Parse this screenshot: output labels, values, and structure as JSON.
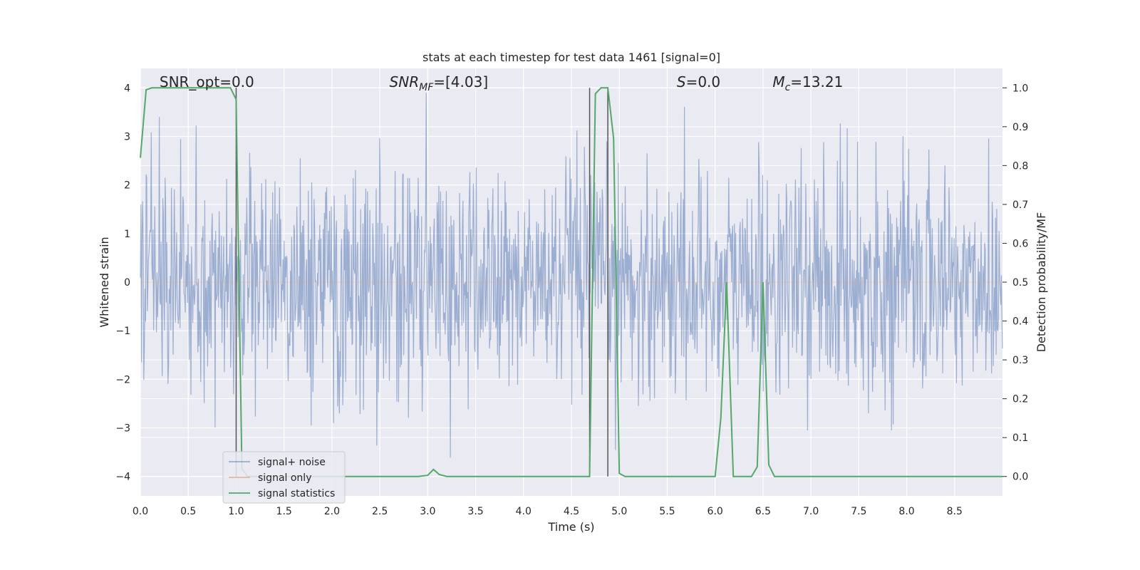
{
  "chart_data": {
    "type": "line",
    "title": "stats at each timestep for test data 1461 [signal=0]",
    "xlabel": "Time (s)",
    "ylabel": "Whitened strain",
    "y2label": "Detection probability/MF",
    "xlim": [
      0.0,
      9.0
    ],
    "ylim": [
      -4.4,
      4.4
    ],
    "y2lim": [
      -0.05,
      1.05
    ],
    "x_ticks": [
      "0.0",
      "0.5",
      "1.0",
      "1.5",
      "2.0",
      "2.5",
      "3.0",
      "3.5",
      "4.0",
      "4.5",
      "5.0",
      "5.5",
      "6.0",
      "6.5",
      "7.0",
      "7.5",
      "8.0",
      "8.5"
    ],
    "y_ticks": [
      "4",
      "3",
      "2",
      "1",
      "0",
      "−1",
      "−2",
      "−3",
      "−4"
    ],
    "y2_ticks": [
      "1.0",
      "0.9",
      "0.8",
      "0.7",
      "0.6",
      "0.5",
      "0.4",
      "0.3",
      "0.2",
      "0.1",
      "0.0"
    ],
    "grid": true,
    "legend_position": "bottom-left",
    "annotations": [
      {
        "id": "snr-opt",
        "text": "SNR_opt=0.0",
        "x": 0.2
      },
      {
        "id": "snr-mf",
        "text": "SNR_MF=[4.03]",
        "x": 2.6
      },
      {
        "id": "s-value",
        "text": "S=0.0",
        "x": 5.6
      },
      {
        "id": "mc-value",
        "text": "M_c=13.21",
        "x": 6.6
      }
    ],
    "vertical_lines_x": [
      1.0,
      4.69,
      4.88
    ],
    "series": [
      {
        "name": "signal+ noise",
        "color": "#4c72b0",
        "description": "whitened noise, amplitude approx within [-4, 4]"
      },
      {
        "name": "signal only",
        "color": "#dd8452",
        "x": [
          0.0,
          9.0
        ],
        "y": [
          0.0,
          0.0
        ]
      },
      {
        "name": "signal statistics",
        "color": "#55a868",
        "axis": "right",
        "x": [
          0.0,
          0.06,
          0.12,
          0.2,
          0.4,
          0.6,
          0.8,
          0.94,
          1.0,
          1.06,
          1.12,
          1.5,
          2.0,
          2.5,
          2.9,
          3.0,
          3.06,
          3.12,
          3.2,
          3.5,
          4.0,
          4.5,
          4.69,
          4.75,
          4.81,
          4.88,
          4.94,
          5.0,
          5.06,
          5.5,
          6.0,
          6.06,
          6.12,
          6.19,
          6.38,
          6.44,
          6.5,
          6.56,
          6.62,
          7.0,
          8.0,
          9.0
        ],
        "y": [
          0.82,
          0.995,
          1.0,
          1.0,
          1.0,
          1.0,
          1.0,
          1.0,
          0.97,
          0.02,
          0.0,
          0.0,
          0.0,
          0.0,
          0.0,
          0.003,
          0.018,
          0.005,
          0.0,
          0.0,
          0.0,
          0.0,
          0.0,
          0.985,
          1.0,
          1.0,
          0.87,
          0.008,
          0.0,
          0.0,
          0.0,
          0.15,
          0.5,
          0.0,
          0.0,
          0.025,
          0.5,
          0.03,
          0.0,
          0.0,
          0.0,
          0.0
        ]
      }
    ]
  }
}
